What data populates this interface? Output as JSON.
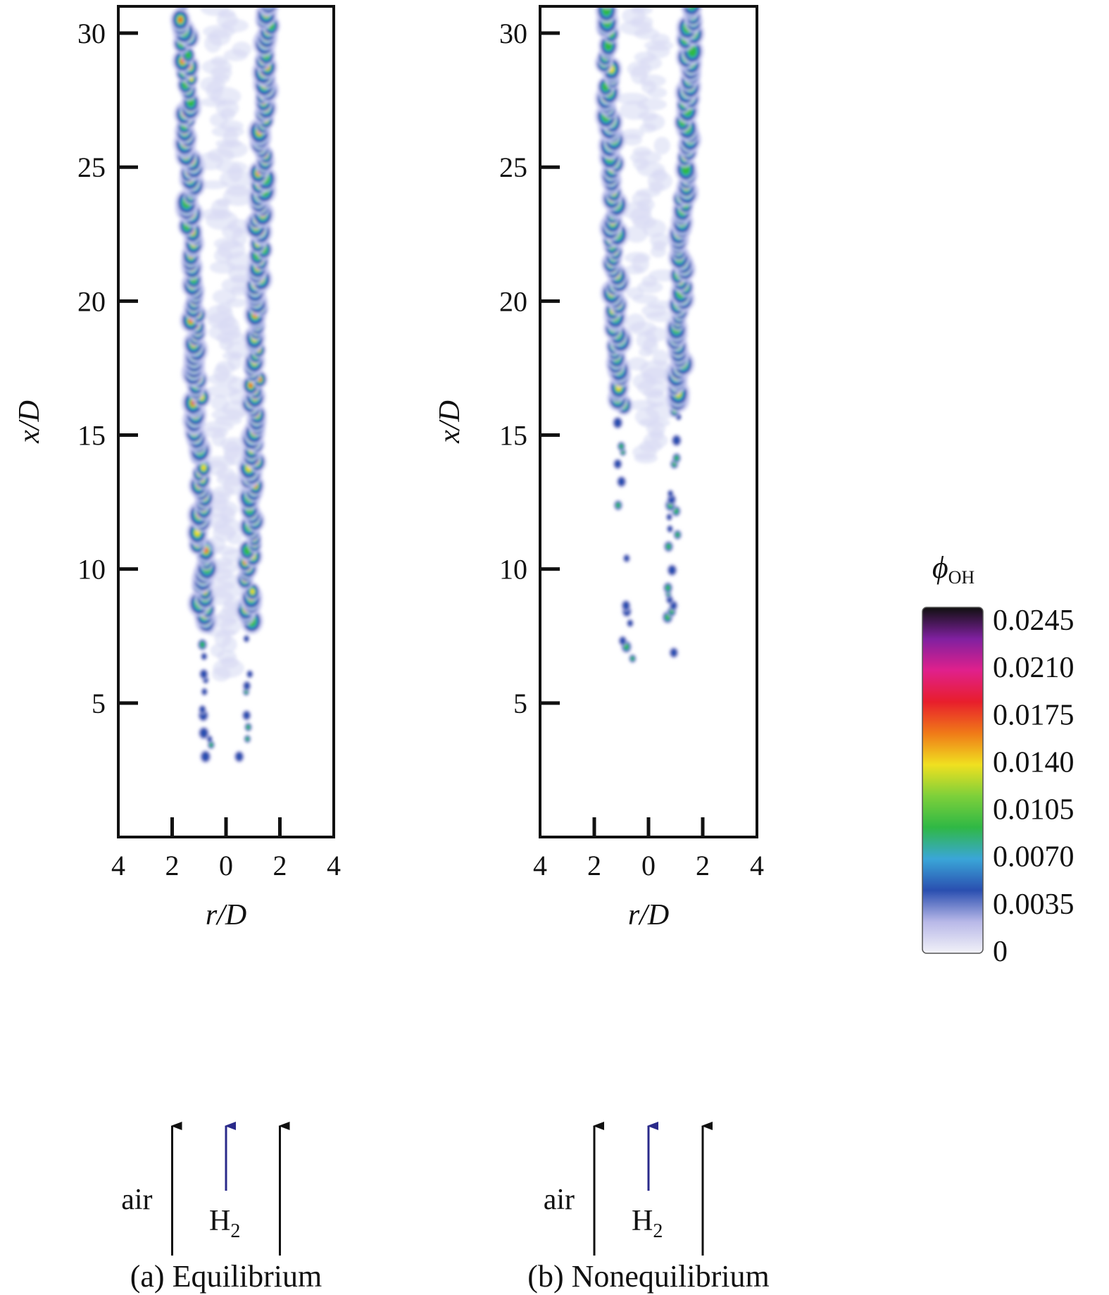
{
  "chart_data": [
    {
      "type": "heatmap",
      "caption": "(a) Equilibrium",
      "xlabel": "r/D",
      "ylabel": "x/D",
      "x_ticks": [
        "4",
        "2",
        "0",
        "2",
        "4"
      ],
      "y_ticks": [
        "5",
        "10",
        "15",
        "20",
        "25",
        "30"
      ],
      "xlim": [
        -4,
        4
      ],
      "ylim": [
        0,
        31
      ],
      "inlet_labels": {
        "air": "air",
        "fuel": "H",
        "fuel_sub": "2"
      },
      "field": "phi_OH",
      "peak_level": "high",
      "flame_start_xD": 3,
      "dense_start_xD": 8
    },
    {
      "type": "heatmap",
      "caption": "(b) Nonequilibrium",
      "xlabel": "r/D",
      "ylabel": "x/D",
      "x_ticks": [
        "4",
        "2",
        "0",
        "2",
        "4"
      ],
      "y_ticks": [
        "5",
        "10",
        "15",
        "20",
        "25",
        "30"
      ],
      "xlim": [
        -4,
        4
      ],
      "ylim": [
        0,
        31
      ],
      "inlet_labels": {
        "air": "air",
        "fuel": "H",
        "fuel_sub": "2"
      },
      "field": "phi_OH",
      "peak_level": "medium",
      "flame_start_xD": 6,
      "dense_start_xD": 16
    }
  ],
  "colorbar": {
    "title_symbol": "ϕ",
    "title_sub": "OH",
    "tick_labels": [
      "0.0245",
      "0.0210",
      "0.0175",
      "0.0140",
      "0.0105",
      "0.0070",
      "0.0035",
      "0"
    ],
    "colors": [
      "#f2f2f8",
      "#b8b8e8",
      "#2a4fb0",
      "#3aa6d8",
      "#2fb845",
      "#7ed03a",
      "#f0e020",
      "#f07a18",
      "#e81e2c",
      "#e0208c",
      "#8020a0",
      "#101010"
    ],
    "range": [
      0,
      0.0245
    ]
  }
}
